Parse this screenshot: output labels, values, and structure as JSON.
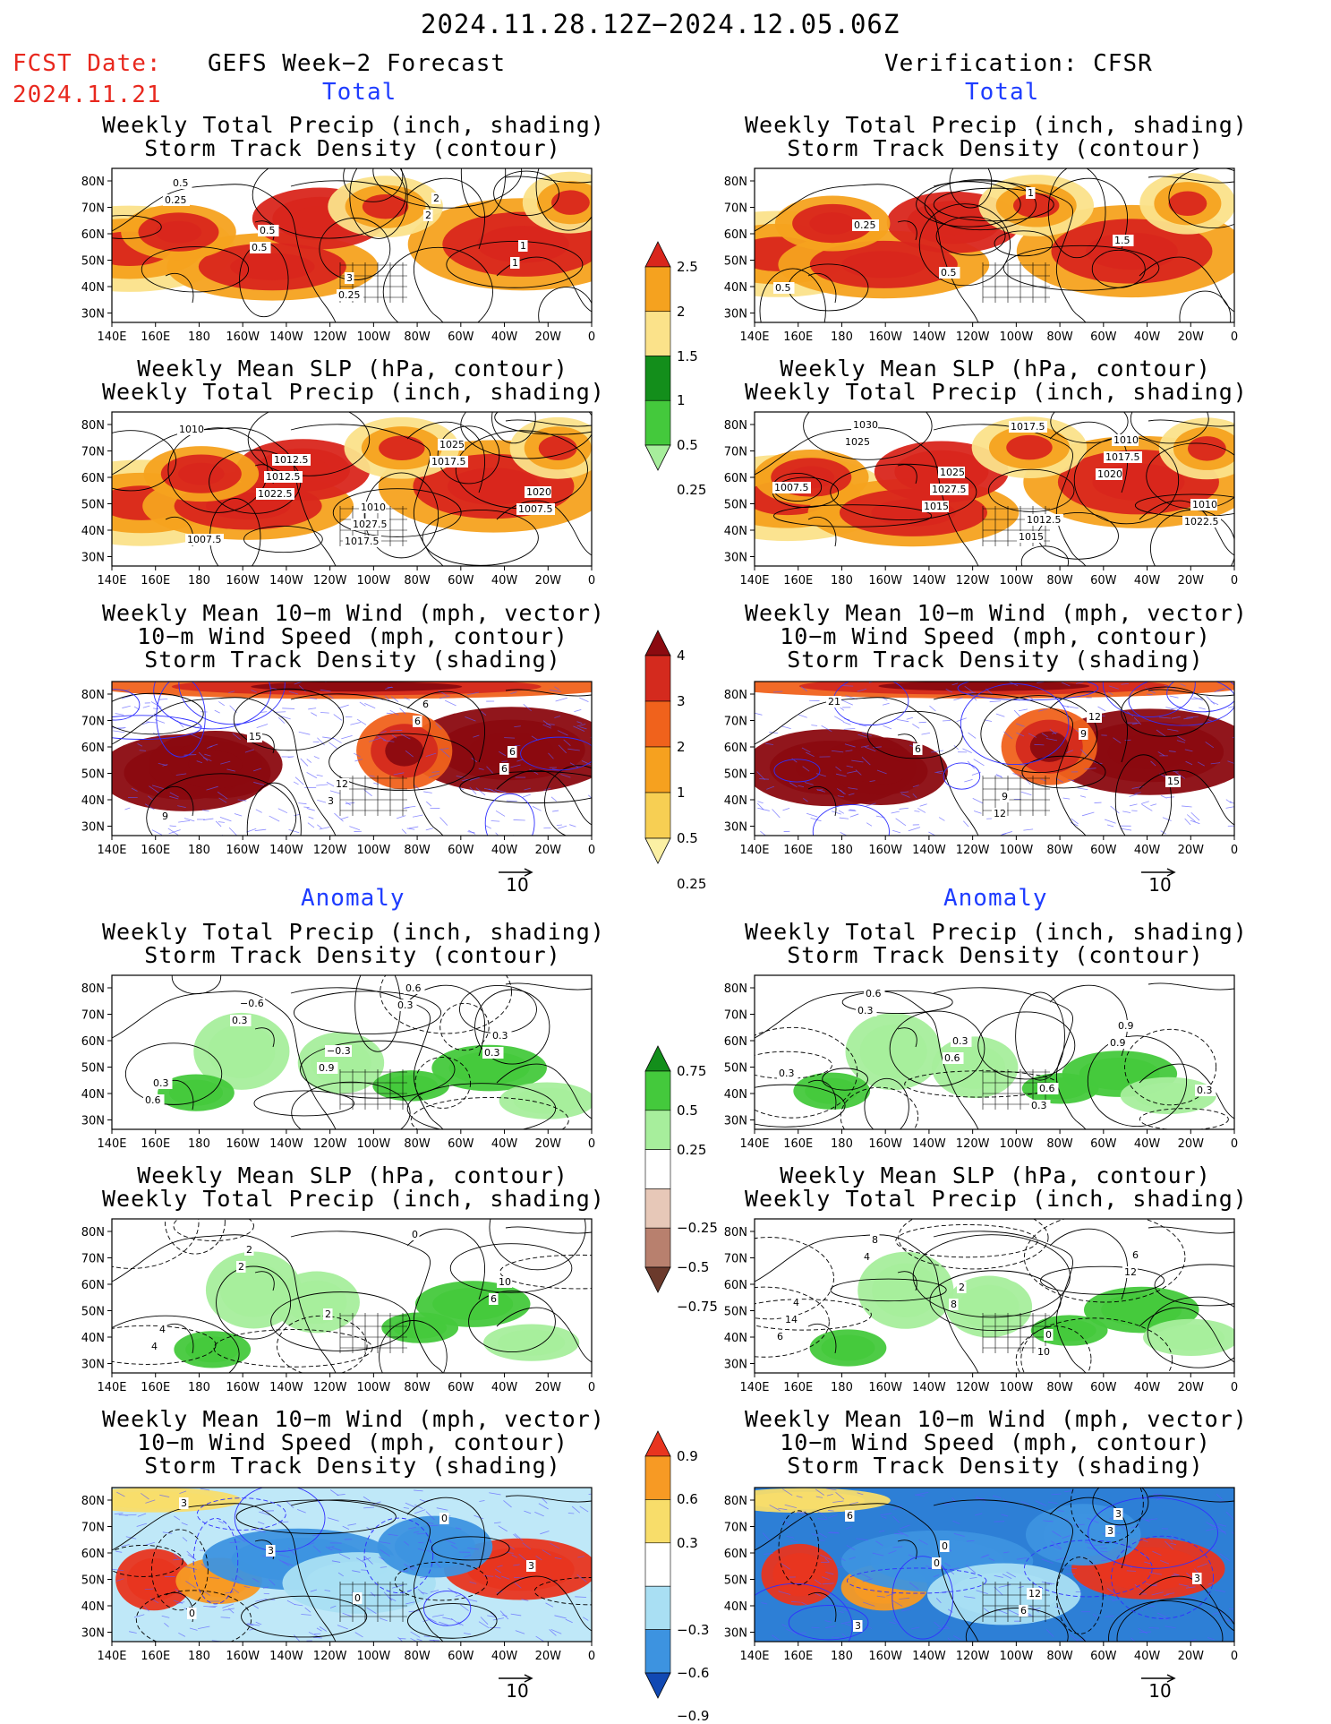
{
  "header": {
    "date_range": "2024.11.28.12Z−2024.12.05.06Z",
    "fcst_label": "FCST Date:",
    "fcst_date": "2024.11.21",
    "left_title": "GEFS Week−2 Forecast",
    "right_title": "Verification: CFSR"
  },
  "sections": {
    "total": "Total",
    "anomaly": "Anomaly"
  },
  "panel_titles": {
    "precip_storm": [
      "Weekly Total Precip (inch, shading)",
      "Storm Track Density (contour)"
    ],
    "slp_precip": [
      "Weekly Mean SLP (hPa, contour)",
      "Weekly Total Precip (inch, shading)"
    ],
    "wind_storm": [
      "Weekly Mean 10−m Wind (mph, vector)",
      "10−m Wind Speed (mph, contour)",
      "Storm Track Density (shading)"
    ]
  },
  "axes": {
    "lat_ticks": [
      "80N",
      "70N",
      "60N",
      "50N",
      "40N",
      "30N"
    ],
    "lon_ticks": [
      "140E",
      "160E",
      "180",
      "160W",
      "140W",
      "120W",
      "100W",
      "80W",
      "60W",
      "40W",
      "20W",
      "0"
    ]
  },
  "reference_vector": "10",
  "colorbars": {
    "total_precip": {
      "ticks": [
        "2.5",
        "2",
        "1.5",
        "1",
        "0.5",
        "0.25"
      ],
      "colors": [
        "#d9261c",
        "#f5a21f",
        "#fbe28a",
        "#138e1b",
        "#44c93c",
        "#a7ee9c"
      ]
    },
    "total_storm": {
      "ticks": [
        "4",
        "3",
        "2",
        "1",
        "0.5",
        "0.25"
      ],
      "colors": [
        "#8b0a10",
        "#d42a1e",
        "#f0621c",
        "#f6a11f",
        "#f7cf53",
        "#fbf0a4"
      ]
    },
    "anom_precip": {
      "ticks": [
        "0.75",
        "0.5",
        "0.25",
        "−0.25",
        "−0.5",
        "−0.75"
      ],
      "colors": [
        "#138e1b",
        "#44c93c",
        "#a7ee9c",
        "#ffffff",
        "#e7c8b8",
        "#b8806e",
        "#6b3a2c"
      ]
    },
    "anom_storm": {
      "ticks": [
        "0.9",
        "0.6",
        "0.3",
        "−0.3",
        "−0.6",
        "−0.9"
      ],
      "colors": [
        "#e8351f",
        "#f79a24",
        "#f8dd6a",
        "#ffffff",
        "#a9dff3",
        "#3d93e0",
        "#1149b3"
      ]
    }
  },
  "contour_labels": {
    "l1": [
      "0.25",
      "0.5",
      "0.25",
      "2",
      "1",
      "0.5",
      "0.5",
      "3",
      "2",
      "1"
    ],
    "r1": [
      "0.25",
      "0.5",
      "1",
      "1.5",
      "0.5"
    ],
    "l2": [
      "1022.5",
      "1017.5",
      "1017.5",
      "1007.5",
      "1010",
      "1012.5",
      "1027.5",
      "1025",
      "1020",
      "1007.5",
      "1012.5",
      "1010"
    ],
    "r2": [
      "1015",
      "1017.5",
      "1020",
      "1022.5",
      "1025",
      "1027.5",
      "1015",
      "1017.5",
      "1010",
      "1030",
      "1025",
      "1012.5",
      "1010",
      "1007.5"
    ],
    "l3": [
      "3",
      "6",
      "6",
      "9",
      "15",
      "12",
      "6",
      "6"
    ],
    "r3": [
      "12",
      "9",
      "15",
      "21",
      "6",
      "9",
      "12"
    ],
    "l4": [
      "0.3",
      "0.3",
      "0.6",
      "0.3",
      "0.9",
      "0.6",
      "0.3",
      "0.3",
      "−0.6",
      "−0.3"
    ],
    "r4": [
      "0.9",
      "0.3",
      "0.3",
      "0.6",
      "0.3",
      "0.9",
      "0.3",
      "0.6",
      "0.3",
      "0.6"
    ],
    "l5": [
      "6",
      "4",
      "2",
      "2",
      "0",
      "10",
      "4",
      "2"
    ],
    "r5": [
      "6",
      "4",
      "8",
      "10",
      "12",
      "14",
      "8",
      "2",
      "0",
      "6",
      "4"
    ],
    "l6": [
      "3",
      "3",
      "0",
      "0",
      "3",
      "0"
    ],
    "r6": [
      "6",
      "0",
      "6",
      "3",
      "3",
      "3",
      "0",
      "12",
      "3"
    ]
  }
}
